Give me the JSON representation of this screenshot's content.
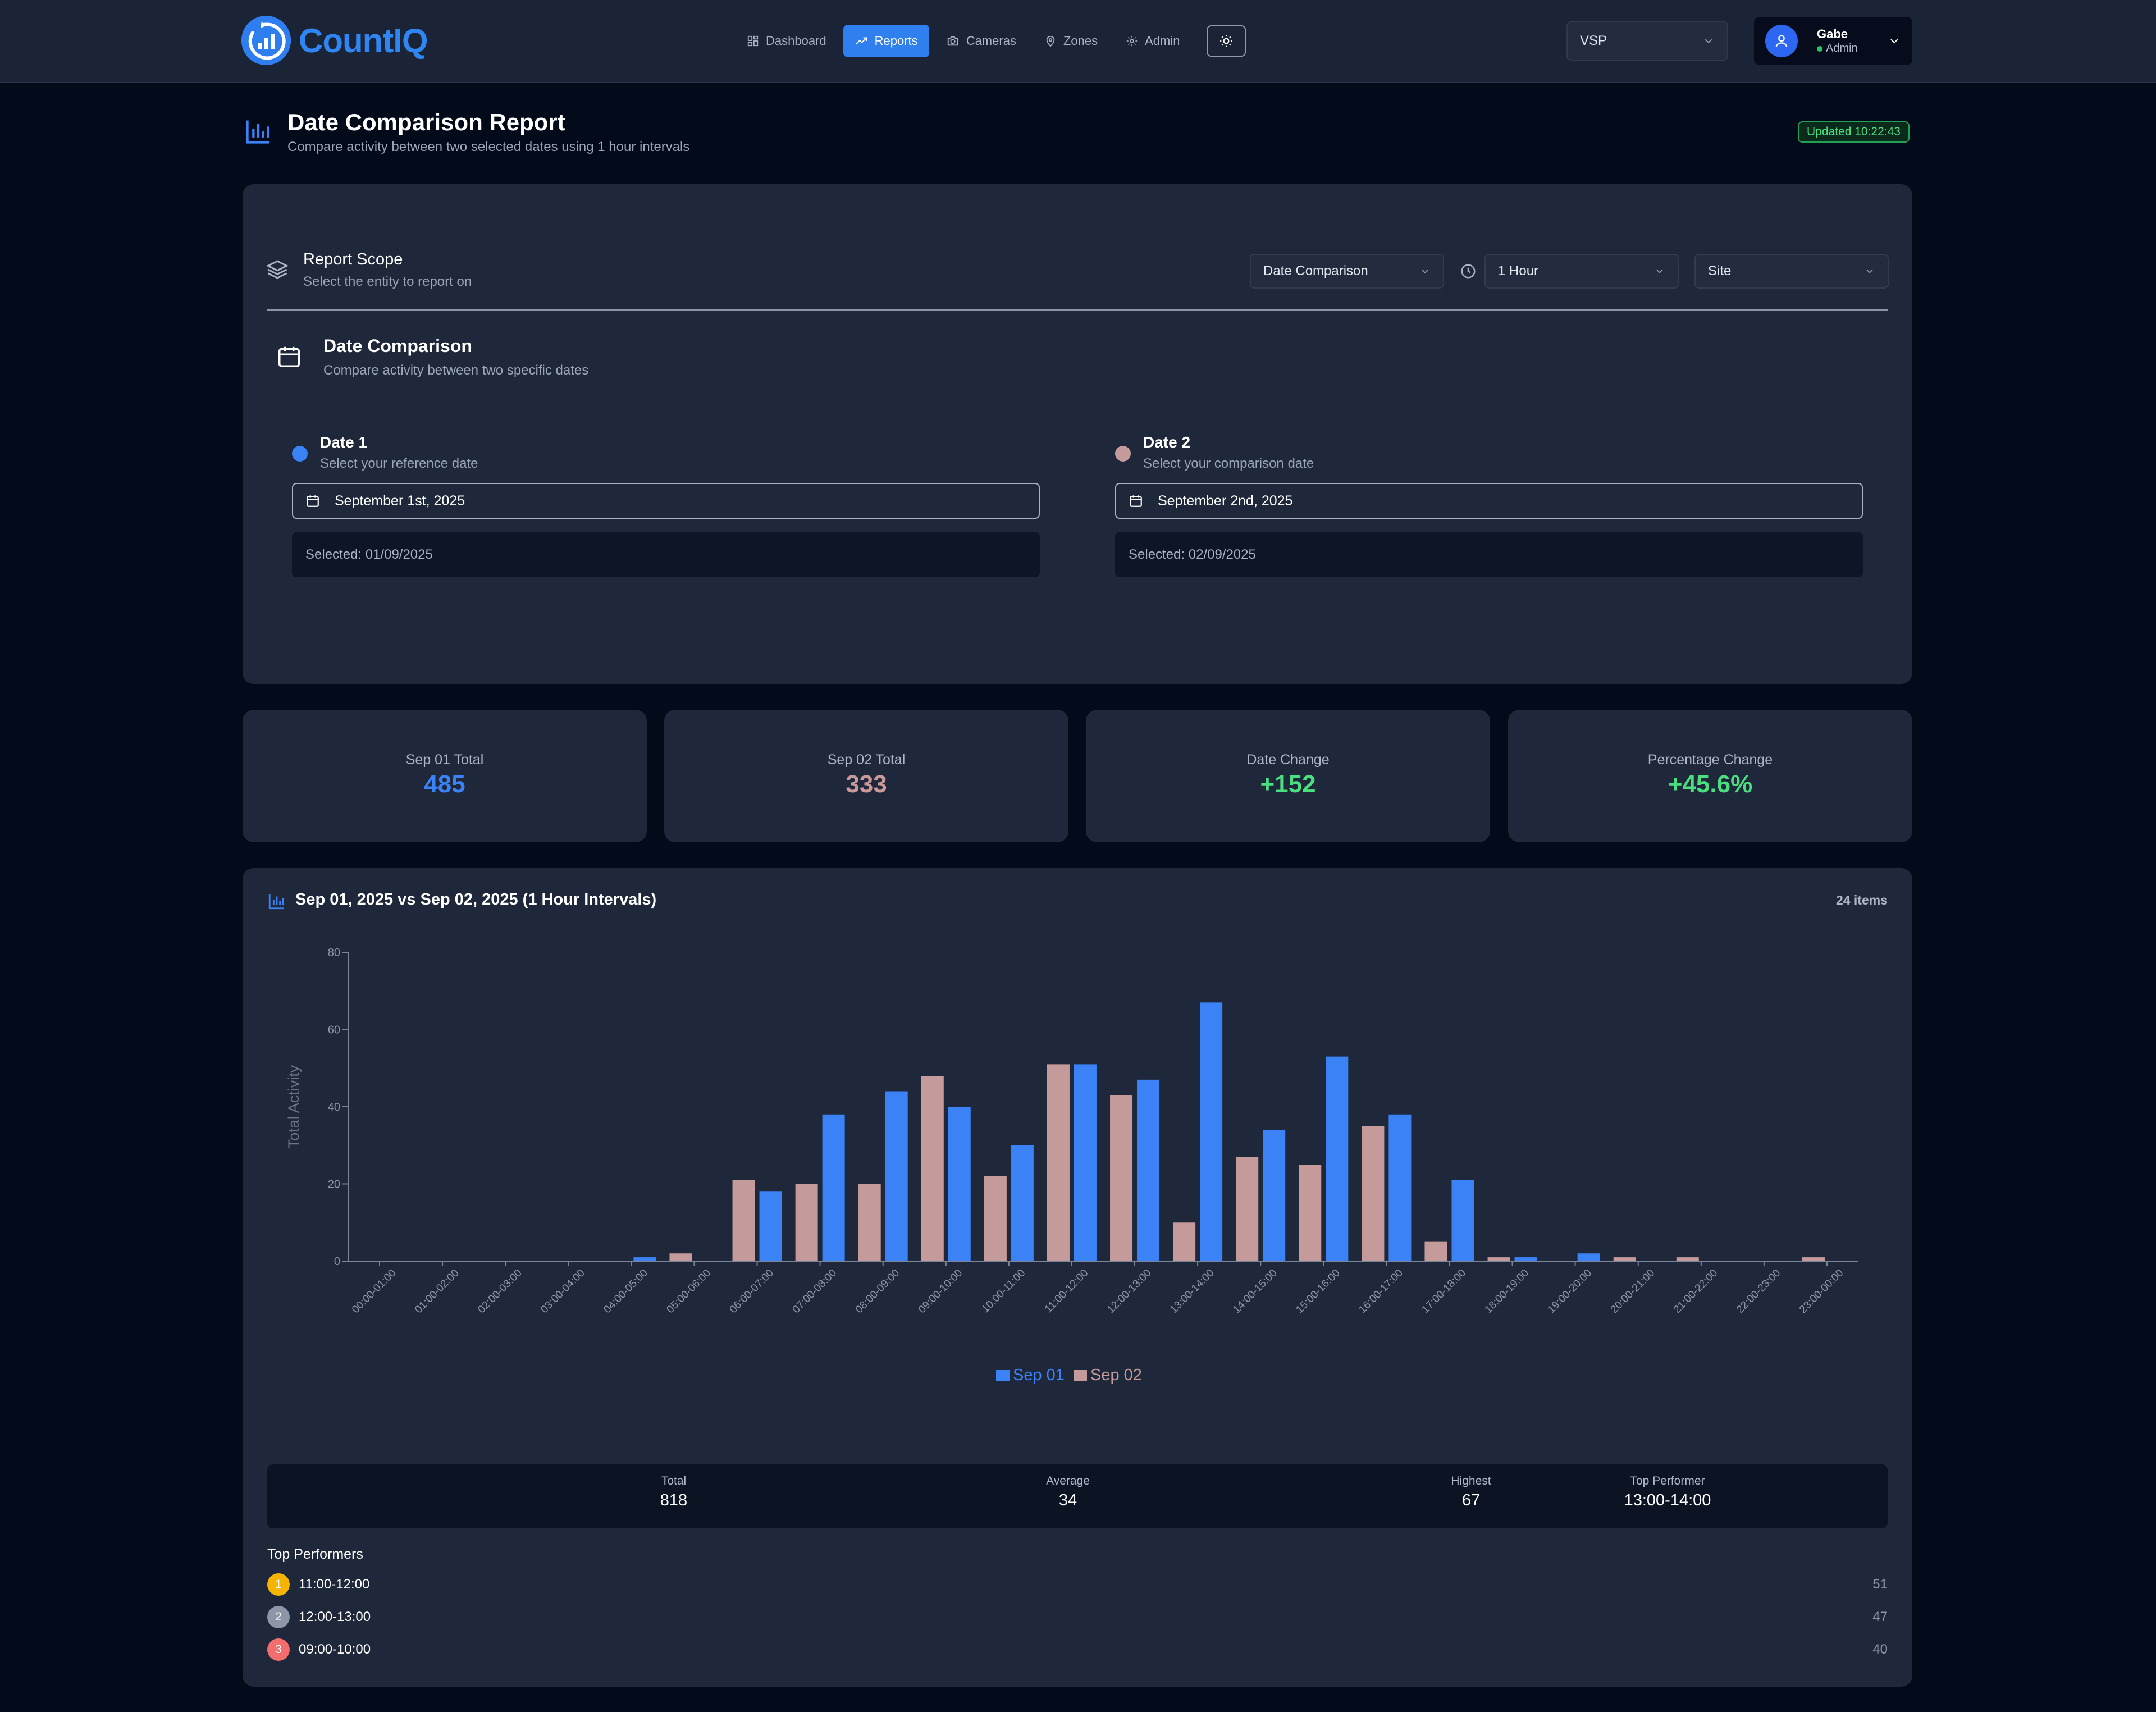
{
  "app": {
    "name": "CountIQ"
  },
  "nav": {
    "items": [
      {
        "label": "Dashboard",
        "icon": "dashboard-icon",
        "active": false
      },
      {
        "label": "Reports",
        "icon": "trending-up-icon",
        "active": true
      },
      {
        "label": "Cameras",
        "icon": "camera-icon",
        "active": false
      },
      {
        "label": "Zones",
        "icon": "map-pin-icon",
        "active": false
      },
      {
        "label": "Admin",
        "icon": "gear-icon",
        "active": false
      }
    ],
    "theme_toggle_icon": "sun-icon"
  },
  "site_select": {
    "value": "VSP"
  },
  "user": {
    "name": "Gabe",
    "role": "Admin",
    "status_color": "#22c55e"
  },
  "page": {
    "title": "Date Comparison Report",
    "subtitle": "Compare activity between two selected dates using 1 hour intervals",
    "updated": "Updated 10:22:43"
  },
  "scope": {
    "title": "Report Scope",
    "subtitle": "Select the entity to report on",
    "report_type": "Date Comparison",
    "interval": "1 Hour",
    "entity": "Site"
  },
  "date_comparison": {
    "title": "Date Comparison",
    "subtitle": "Compare activity between two specific dates",
    "date1": {
      "label": "Date 1",
      "help": "Select your reference date",
      "value": "September 1st, 2025",
      "selected": "Selected: 01/09/2025",
      "color": "#3b82f6"
    },
    "date2": {
      "label": "Date 2",
      "help": "Select your comparison date",
      "value": "September 2nd, 2025",
      "selected": "Selected: 02/09/2025",
      "color": "#c49a9a"
    }
  },
  "stats": [
    {
      "label": "Sep 01 Total",
      "value": "485",
      "color": "#3b82f6"
    },
    {
      "label": "Sep 02 Total",
      "value": "333",
      "color": "#c9999a"
    },
    {
      "label": "Date Change",
      "value": "+152",
      "color": "#4ade80"
    },
    {
      "label": "Percentage Change",
      "value": "+45.6%",
      "color": "#4ade80"
    }
  ],
  "chart_section": {
    "title": "Sep 01, 2025 vs Sep 02, 2025 (1 Hour Intervals)",
    "count": "24 items"
  },
  "chart_data": {
    "type": "bar",
    "ylabel": "Total Activity",
    "xlabel": "",
    "ylim": [
      0,
      80
    ],
    "yticks": [
      0,
      20,
      40,
      60,
      80
    ],
    "grid": false,
    "legend": "bottom-center",
    "categories": [
      "00:00-01:00",
      "01:00-02:00",
      "02:00-03:00",
      "03:00-04:00",
      "04:00-05:00",
      "05:00-06:00",
      "06:00-07:00",
      "07:00-08:00",
      "08:00-09:00",
      "09:00-10:00",
      "10:00-11:00",
      "11:00-12:00",
      "12:00-13:00",
      "13:00-14:00",
      "14:00-15:00",
      "15:00-16:00",
      "16:00-17:00",
      "17:00-18:00",
      "18:00-19:00",
      "19:00-20:00",
      "20:00-21:00",
      "21:00-22:00",
      "22:00-23:00",
      "23:00-00:00"
    ],
    "series": [
      {
        "name": "Sep 02",
        "color": "#c49a9a",
        "values": [
          0,
          0,
          0,
          0,
          0,
          2,
          21,
          20,
          20,
          48,
          22,
          51,
          43,
          10,
          27,
          25,
          35,
          5,
          1,
          0,
          1,
          1,
          0,
          1
        ]
      },
      {
        "name": "Sep 01",
        "color": "#3b82f6",
        "values": [
          0,
          0,
          0,
          0,
          1,
          0,
          18,
          38,
          44,
          40,
          30,
          51,
          47,
          67,
          34,
          53,
          38,
          21,
          1,
          2,
          0,
          0,
          0,
          0
        ]
      }
    ],
    "legend_order": [
      "Sep 01",
      "Sep 02"
    ]
  },
  "summary": {
    "items": [
      {
        "label": "Total",
        "value": "818"
      },
      {
        "label": "Average",
        "value": "34"
      },
      {
        "label": "Highest",
        "value": "67"
      },
      {
        "label": "Top Performer",
        "value": "13:00-14:00"
      }
    ]
  },
  "top_performers": {
    "title": "Top Performers",
    "items": [
      {
        "rank": "1",
        "label": "11:00-12:00",
        "value": "51",
        "color": "#f5b400"
      },
      {
        "rank": "2",
        "label": "12:00-13:00",
        "value": "47",
        "color": "#8c96a8"
      },
      {
        "rank": "3",
        "label": "09:00-10:00",
        "value": "40",
        "color": "#f26d6d"
      }
    ]
  }
}
